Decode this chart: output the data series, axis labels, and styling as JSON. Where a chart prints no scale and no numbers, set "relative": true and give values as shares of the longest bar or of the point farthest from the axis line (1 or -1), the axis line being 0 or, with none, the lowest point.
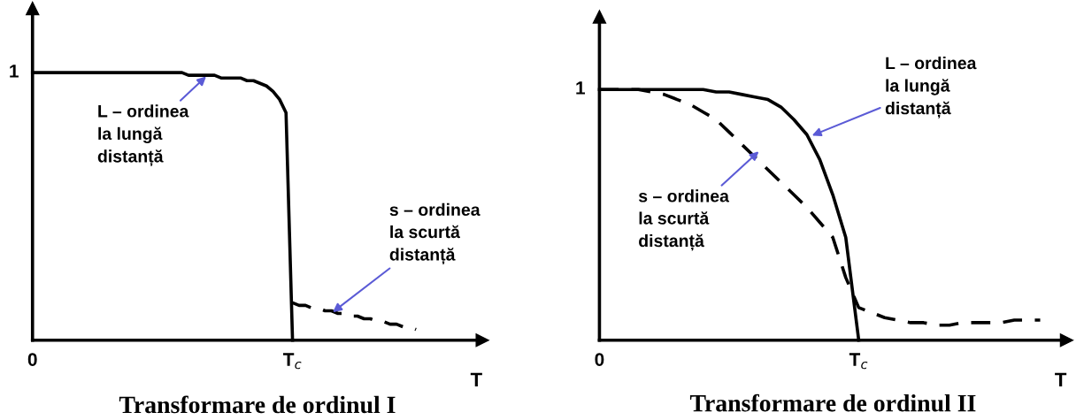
{
  "chart_data": [
    {
      "type": "line",
      "title": "Transformare de ordinul I",
      "xlabel": "T",
      "relative": true,
      "grid": false,
      "legend": false,
      "categories": [
        "0",
        null,
        null,
        null,
        null,
        null,
        null,
        null,
        null,
        null,
        null,
        null,
        null,
        null,
        null,
        null,
        null,
        null,
        null,
        null,
        null,
        null,
        null,
        null,
        null,
        null,
        null,
        null,
        null,
        null,
        null,
        null,
        null,
        null,
        null,
        null,
        null,
        null,
        null,
        null,
        "T$_{c}$",
        null,
        null,
        null,
        null,
        null,
        null,
        null,
        null,
        null,
        null,
        null,
        null,
        null,
        null,
        null,
        null,
        null,
        null,
        null
      ],
      "series": [
        {
          "color": "#000000",
          "line_style": "solid",
          "values": [
            1.0,
            1.0,
            1.0,
            1.0,
            1.0,
            1.0,
            1.0,
            1.0,
            1.0,
            1.0,
            1.0,
            1.0,
            1.0,
            1.0,
            1.0,
            1.0,
            1.0,
            1.0,
            1.0,
            1.0,
            1.0,
            1.0,
            1.0,
            1.0,
            0.99,
            0.99,
            0.99,
            0.99,
            0.99,
            0.98,
            0.98,
            0.98,
            0.98,
            0.97,
            0.97,
            0.96,
            0.95,
            0.93,
            0.9,
            0.85,
            0,
            null,
            null,
            null,
            null,
            null,
            null,
            null,
            null,
            null,
            null,
            null,
            null,
            null,
            null,
            null,
            null,
            null,
            null,
            null
          ]
        },
        {
          "color": "#000000",
          "line_style": "dashed",
          "values": [
            null,
            null,
            null,
            null,
            null,
            null,
            null,
            null,
            null,
            null,
            null,
            null,
            null,
            null,
            null,
            null,
            null,
            null,
            null,
            null,
            null,
            null,
            null,
            null,
            null,
            null,
            null,
            null,
            null,
            null,
            null,
            null,
            null,
            null,
            null,
            null,
            null,
            null,
            null,
            null,
            0.14,
            0.13,
            0.13,
            0.12,
            0.12,
            0.11,
            0.11,
            0.1,
            0.1,
            0.09,
            0.09,
            0.08,
            0.08,
            0.07,
            0.07,
            0.06,
            0.06,
            0.05,
            0.05,
            0.04
          ]
        }
      ],
      "annotations": [
        "L – ordinea\nla lungă\ndistanță",
        "s – ordinea\nla scurtă\ndistanță",
        "1"
      ]
    },
    {
      "type": "line",
      "title": "Transformare de ordinul II",
      "xlabel": "T",
      "relative": true,
      "legend": false,
      "categories": [
        "0",
        null,
        null,
        null,
        null,
        null,
        null,
        null,
        null,
        null,
        null,
        null,
        null,
        null,
        null,
        null,
        null,
        null,
        null,
        null,
        "T$_{c}$",
        null,
        null,
        null,
        null,
        null,
        null,
        null,
        null,
        null,
        null,
        null,
        null,
        null,
        null
      ],
      "series": [
        {
          "color": "#000000",
          "line_style": "solid",
          "values": [
            1.0,
            1.0,
            1.0,
            1.0,
            1.0,
            1.0,
            1.0,
            1.0,
            1.0,
            0.99,
            0.99,
            0.98,
            0.97,
            0.96,
            0.93,
            0.88,
            0.82,
            0.72,
            0.58,
            0.41,
            0,
            null,
            null,
            null,
            null,
            null,
            null,
            null,
            null,
            null,
            null,
            null,
            null,
            null,
            null
          ]
        },
        {
          "color": "#000000",
          "line_style": "dashed",
          "values": [
            1.0,
            1.0,
            1.0,
            1.0,
            0.99,
            0.98,
            0.96,
            0.94,
            0.91,
            0.88,
            0.83,
            0.78,
            0.73,
            0.68,
            0.63,
            0.58,
            0.53,
            0.47,
            0.41,
            0.25,
            0.13,
            0.11,
            0.09,
            0.08,
            0.07,
            0.07,
            0.06,
            0.06,
            0.07,
            0.07,
            0.07,
            0.07,
            0.08,
            0.08,
            0.08
          ]
        }
      ],
      "annotations": [
        "L – ordinea\nla lungă\ndistanță",
        "s – ordinea\nla scurtă\ndistanță",
        "1"
      ]
    }
  ]
}
